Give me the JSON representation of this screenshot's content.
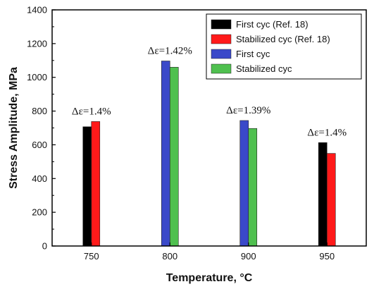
{
  "chart_data": {
    "type": "bar",
    "xlabel": "Temperature, ",
    "xlabel_unit": "°C",
    "ylabel": "Stress Amplitude, MPa",
    "ylim": [
      0,
      1400
    ],
    "yticks": [
      "0",
      "200",
      "400",
      "600",
      "800",
      "1000",
      "1200",
      "1400"
    ],
    "categories": [
      "750",
      "800",
      "900",
      "950"
    ],
    "series": [
      {
        "name": "First cyc (Ref. 18)",
        "color": "#000000",
        "values": [
          707,
          null,
          null,
          613
        ]
      },
      {
        "name": "Stabilized cyc (Ref. 18)",
        "color": "#ff1a1a",
        "values": [
          738,
          null,
          null,
          549
        ]
      },
      {
        "name": "First cyc",
        "color": "#3a49c9",
        "values": [
          null,
          1097,
          744,
          null
        ]
      },
      {
        "name": "Stabilized cyc",
        "color": "#4fc04f",
        "values": [
          null,
          1060,
          697,
          null
        ]
      }
    ],
    "annotations": [
      "Δε=1.4%",
      "Δε=1.42%",
      "Δε=1.39%",
      "Δε=1.4%"
    ],
    "legend_position": "top-right",
    "grid": false
  }
}
